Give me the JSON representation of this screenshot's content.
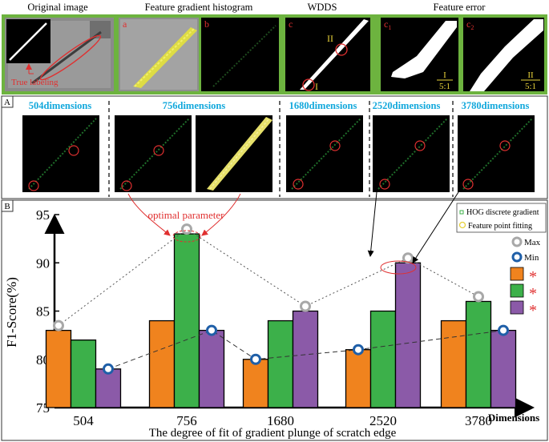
{
  "top_row": {
    "original_title": "Original image",
    "gradient_title": "Feature gradient histogram",
    "wdds_title": "WDDS",
    "error_title": "Feature error",
    "true_labeling": "True labeling",
    "label_a": "a",
    "label_b": "b",
    "label_c": "c",
    "label_c1_main": "c",
    "label_c1_sub": "1",
    "label_c2_main": "c",
    "label_c2_sub": "2",
    "roman_1": "I",
    "roman_2": "II",
    "ratio_i_num": "I",
    "ratio_i_den": "5:1",
    "ratio_ii_num": "II",
    "ratio_ii_den": "5:1"
  },
  "panel_a": {
    "tag": "A",
    "dims": [
      "504dimensions",
      "756dimensions",
      "1680dimensions",
      "2520dimensions",
      "3780dimensions"
    ]
  },
  "panel_b": {
    "tag": "B",
    "optimal_parameter": "optimal parameter",
    "legend_hog": "HOG discrete gradient",
    "legend_fit": "Feature point fitting",
    "legend_max": "Max",
    "legend_min": "Min",
    "asterisk": "*",
    "dimensions_label": "Dimensions"
  },
  "colors": {
    "orange": "#f0831e",
    "green": "#3cb04a",
    "purple": "#8b5aa8",
    "cyan": "#12a8dc",
    "red": "#e03030",
    "panel_green": "#6db33f",
    "blue_marker": "#1f5fa8"
  },
  "chart_data": {
    "type": "bar",
    "title": "",
    "xlabel": "The degree of fit of gradient plunge of scratch edge",
    "ylabel": "F1-Score(%)",
    "ylim": [
      75,
      95
    ],
    "yticks": [
      75,
      80,
      85,
      90,
      95
    ],
    "categories": [
      "504",
      "756",
      "1680",
      "2520",
      "3780"
    ],
    "series": [
      {
        "values": [
          83,
          84,
          80,
          81,
          84
        ]
      },
      {
        "values": [
          82,
          93,
          84,
          85,
          86
        ]
      },
      {
        "values": [
          79,
          83,
          85,
          90,
          83
        ]
      }
    ],
    "max_values": [
      83,
      93,
      85,
      90,
      86
    ],
    "min_values": [
      79,
      83,
      80,
      81,
      83
    ],
    "legend_position": "right"
  }
}
